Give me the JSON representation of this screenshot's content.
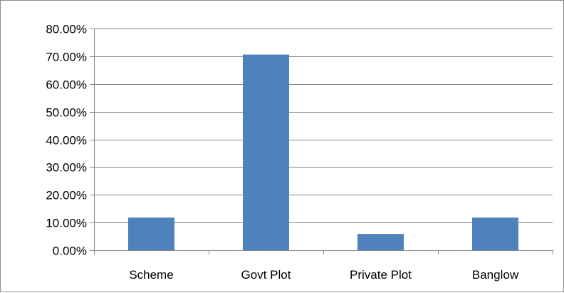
{
  "chart_data": {
    "type": "bar",
    "title": "",
    "xlabel": "",
    "ylabel": "",
    "categories": [
      "Scheme",
      "Govt Plot",
      "Private Plot",
      "Banglow"
    ],
    "values": [
      0.1176,
      0.7059,
      0.0588,
      0.1176
    ],
    "ylim": [
      0,
      0.8
    ],
    "yticks": [
      0,
      0.1,
      0.2,
      0.3,
      0.4,
      0.5,
      0.6,
      0.7,
      0.8
    ],
    "ytick_labels": [
      "0.00%",
      "10.00%",
      "20.00%",
      "30.00%",
      "40.00%",
      "50.00%",
      "60.00%",
      "70.00%",
      "80.00%"
    ],
    "grid": "horizontal",
    "legend": "none",
    "bar_color": "#4f81bd",
    "gridline_color": "#868686"
  }
}
